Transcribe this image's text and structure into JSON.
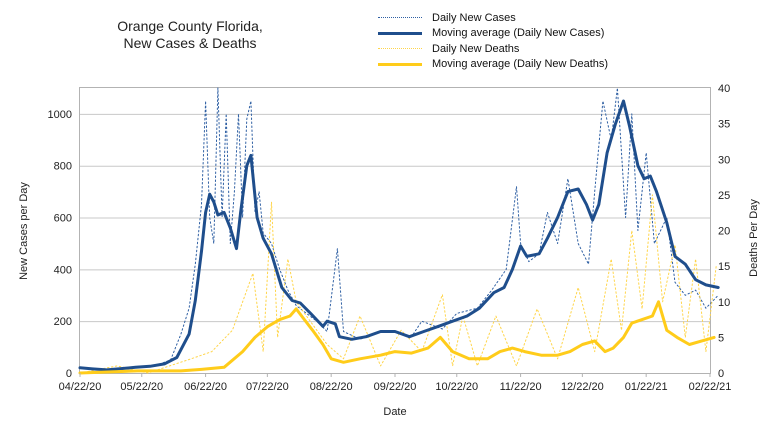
{
  "chart_data": {
    "type": "line",
    "title_line1": "Orange County Florida,",
    "title_line2": "New Cases & Deaths",
    "xlabel": "Date",
    "ylabel_left": "New Cases per Day",
    "ylabel_right": "Deaths Per Day",
    "x_ticks": [
      "04/22/20",
      "05/22/20",
      "06/22/20",
      "07/22/20",
      "08/22/20",
      "09/22/20",
      "10/22/20",
      "11/22/20",
      "12/22/20",
      "01/22/21",
      "02/22/21"
    ],
    "y_left_ticks": [
      0,
      200,
      400,
      600,
      800,
      1000
    ],
    "y_right_ticks": [
      0,
      5,
      10,
      15,
      20,
      25,
      30,
      35,
      40
    ],
    "ylim_left": [
      0,
      1100
    ],
    "ylim_right": [
      0,
      40
    ],
    "grid": true,
    "legend_position": "top",
    "series": [
      {
        "name": "Daily New Cases",
        "axis": "left",
        "style": "dotted",
        "color": "#2e5fa3",
        "points": [
          [
            "04/22/20",
            20
          ],
          [
            "05/01/20",
            14
          ],
          [
            "05/08/20",
            10
          ],
          [
            "05/15/20",
            20
          ],
          [
            "05/22/20",
            26
          ],
          [
            "05/29/20",
            30
          ],
          [
            "06/05/20",
            50
          ],
          [
            "06/10/20",
            150
          ],
          [
            "06/14/20",
            250
          ],
          [
            "06/17/20",
            420
          ],
          [
            "06/20/20",
            650
          ],
          [
            "06/22/20",
            1050
          ],
          [
            "06/24/20",
            600
          ],
          [
            "06/26/20",
            500
          ],
          [
            "06/28/20",
            1100
          ],
          [
            "06/30/20",
            600
          ],
          [
            "07/02/20",
            1000
          ],
          [
            "07/04/20",
            500
          ],
          [
            "07/06/20",
            700
          ],
          [
            "07/08/20",
            1000
          ],
          [
            "07/10/20",
            600
          ],
          [
            "07/12/20",
            980
          ],
          [
            "07/14/20",
            1050
          ],
          [
            "07/16/20",
            620
          ],
          [
            "07/18/20",
            700
          ],
          [
            "07/20/20",
            540
          ],
          [
            "07/24/20",
            500
          ],
          [
            "07/28/20",
            400
          ],
          [
            "08/01/20",
            320
          ],
          [
            "08/05/20",
            260
          ],
          [
            "08/10/20",
            230
          ],
          [
            "08/15/20",
            200
          ],
          [
            "08/20/20",
            160
          ],
          [
            "08/25/20",
            480
          ],
          [
            "08/28/20",
            160
          ],
          [
            "09/05/20",
            130
          ],
          [
            "09/15/20",
            160
          ],
          [
            "09/22/20",
            160
          ],
          [
            "09/30/20",
            140
          ],
          [
            "10/05/20",
            200
          ],
          [
            "10/15/20",
            170
          ],
          [
            "10/22/20",
            230
          ],
          [
            "11/01/20",
            250
          ],
          [
            "11/08/20",
            320
          ],
          [
            "11/15/20",
            400
          ],
          [
            "11/20/20",
            720
          ],
          [
            "11/22/20",
            500
          ],
          [
            "11/26/20",
            430
          ],
          [
            "12/01/20",
            460
          ],
          [
            "12/05/20",
            620
          ],
          [
            "12/10/20",
            500
          ],
          [
            "12/15/20",
            750
          ],
          [
            "12/20/20",
            500
          ],
          [
            "12/25/20",
            420
          ],
          [
            "12/28/20",
            700
          ],
          [
            "01/01/21",
            1050
          ],
          [
            "01/05/21",
            900
          ],
          [
            "01/08/21",
            1100
          ],
          [
            "01/12/21",
            600
          ],
          [
            "01/15/21",
            1000
          ],
          [
            "01/18/21",
            550
          ],
          [
            "01/22/21",
            850
          ],
          [
            "01/26/21",
            500
          ],
          [
            "02/01/21",
            600
          ],
          [
            "02/05/21",
            350
          ],
          [
            "02/10/21",
            300
          ],
          [
            "02/15/21",
            320
          ],
          [
            "02/20/21",
            250
          ],
          [
            "02/26/21",
            300
          ]
        ]
      },
      {
        "name": "Moving average (Daily New Cases)",
        "axis": "left",
        "style": "solid",
        "color": "#1f4e8c",
        "points": [
          [
            "04/22/20",
            20
          ],
          [
            "04/28/20",
            16
          ],
          [
            "05/05/20",
            12
          ],
          [
            "05/12/20",
            17
          ],
          [
            "05/19/20",
            22
          ],
          [
            "05/26/20",
            26
          ],
          [
            "06/02/20",
            35
          ],
          [
            "06/08/20",
            60
          ],
          [
            "06/14/20",
            150
          ],
          [
            "06/17/20",
            280
          ],
          [
            "06/20/20",
            470
          ],
          [
            "06/22/20",
            620
          ],
          [
            "06/24/20",
            690
          ],
          [
            "06/26/20",
            660
          ],
          [
            "06/28/20",
            610
          ],
          [
            "07/01/20",
            620
          ],
          [
            "07/04/20",
            560
          ],
          [
            "07/07/20",
            480
          ],
          [
            "07/09/20",
            620
          ],
          [
            "07/12/20",
            800
          ],
          [
            "07/14/20",
            840
          ],
          [
            "07/17/20",
            600
          ],
          [
            "07/20/20",
            520
          ],
          [
            "07/24/20",
            460
          ],
          [
            "07/29/20",
            330
          ],
          [
            "08/03/20",
            280
          ],
          [
            "08/07/20",
            270
          ],
          [
            "08/12/20",
            230
          ],
          [
            "08/18/20",
            180
          ],
          [
            "08/20/20",
            200
          ],
          [
            "08/24/20",
            190
          ],
          [
            "08/26/20",
            140
          ],
          [
            "09/01/20",
            130
          ],
          [
            "09/08/20",
            140
          ],
          [
            "09/15/20",
            160
          ],
          [
            "09/22/20",
            160
          ],
          [
            "09/29/20",
            140
          ],
          [
            "10/06/20",
            160
          ],
          [
            "10/13/20",
            180
          ],
          [
            "10/20/20",
            200
          ],
          [
            "10/27/20",
            220
          ],
          [
            "11/02/20",
            250
          ],
          [
            "11/09/20",
            310
          ],
          [
            "11/14/20",
            330
          ],
          [
            "11/18/20",
            400
          ],
          [
            "11/22/20",
            490
          ],
          [
            "11/25/20",
            450
          ],
          [
            "12/01/20",
            460
          ],
          [
            "12/05/20",
            520
          ],
          [
            "12/10/20",
            600
          ],
          [
            "12/15/20",
            700
          ],
          [
            "12/20/20",
            710
          ],
          [
            "12/24/20",
            650
          ],
          [
            "12/27/20",
            590
          ],
          [
            "12/30/20",
            650
          ],
          [
            "01/03/21",
            850
          ],
          [
            "01/07/21",
            960
          ],
          [
            "01/11/21",
            1050
          ],
          [
            "01/14/21",
            950
          ],
          [
            "01/18/21",
            800
          ],
          [
            "01/21/21",
            750
          ],
          [
            "01/24/21",
            760
          ],
          [
            "01/27/21",
            700
          ],
          [
            "02/01/21",
            580
          ],
          [
            "02/05/21",
            450
          ],
          [
            "02/10/21",
            420
          ],
          [
            "02/15/21",
            360
          ],
          [
            "02/20/21",
            340
          ],
          [
            "02/26/21",
            330
          ]
        ]
      },
      {
        "name": "Daily New Deaths",
        "axis": "right",
        "style": "dotted",
        "color": "#ffd54a",
        "points": [
          [
            "04/22/20",
            0
          ],
          [
            "05/10/20",
            1
          ],
          [
            "05/25/20",
            0
          ],
          [
            "06/15/20",
            2
          ],
          [
            "06/25/20",
            3
          ],
          [
            "07/05/20",
            6
          ],
          [
            "07/15/20",
            14
          ],
          [
            "07/20/20",
            3
          ],
          [
            "07/24/20",
            24
          ],
          [
            "07/27/20",
            5
          ],
          [
            "08/01/20",
            16
          ],
          [
            "08/05/20",
            10
          ],
          [
            "08/10/20",
            8
          ],
          [
            "08/20/20",
            4
          ],
          [
            "08/28/20",
            2
          ],
          [
            "09/05/20",
            8
          ],
          [
            "09/15/20",
            1
          ],
          [
            "09/25/20",
            6
          ],
          [
            "10/05/20",
            3
          ],
          [
            "10/15/20",
            11
          ],
          [
            "10/20/20",
            1
          ],
          [
            "10/25/20",
            8
          ],
          [
            "11/01/20",
            1
          ],
          [
            "11/10/20",
            8
          ],
          [
            "11/20/20",
            1
          ],
          [
            "11/30/20",
            9
          ],
          [
            "12/10/20",
            2
          ],
          [
            "12/20/20",
            12
          ],
          [
            "12/28/20",
            3
          ],
          [
            "01/05/21",
            16
          ],
          [
            "01/10/21",
            6
          ],
          [
            "01/15/21",
            20
          ],
          [
            "01/20/21",
            9
          ],
          [
            "01/25/21",
            25
          ],
          [
            "01/30/21",
            10
          ],
          [
            "02/05/21",
            18
          ],
          [
            "02/10/21",
            5
          ],
          [
            "02/15/21",
            16
          ],
          [
            "02/20/21",
            3
          ],
          [
            "02/25/21",
            15
          ]
        ]
      },
      {
        "name": "Moving average (Daily New Deaths)",
        "axis": "right",
        "style": "solid",
        "color": "#ffcc1a",
        "points": [
          [
            "04/22/20",
            0
          ],
          [
            "05/20/20",
            0.3
          ],
          [
            "06/10/20",
            0.3
          ],
          [
            "06/20/20",
            0.5
          ],
          [
            "07/01/20",
            0.8
          ],
          [
            "07/10/20",
            3
          ],
          [
            "07/16/20",
            5
          ],
          [
            "07/22/20",
            6.5
          ],
          [
            "07/28/20",
            7.5
          ],
          [
            "08/02/20",
            8
          ],
          [
            "08/05/20",
            9
          ],
          [
            "08/09/20",
            7.5
          ],
          [
            "08/13/20",
            6
          ],
          [
            "08/18/20",
            4
          ],
          [
            "08/22/20",
            2
          ],
          [
            "08/28/20",
            1.5
          ],
          [
            "09/05/20",
            2
          ],
          [
            "09/15/20",
            2.5
          ],
          [
            "09/22/20",
            3
          ],
          [
            "09/30/20",
            2.8
          ],
          [
            "10/08/20",
            3.5
          ],
          [
            "10/14/20",
            5
          ],
          [
            "10/20/20",
            3
          ],
          [
            "10/28/20",
            2
          ],
          [
            "11/06/20",
            2
          ],
          [
            "11/12/20",
            3
          ],
          [
            "11/18/20",
            3.5
          ],
          [
            "11/24/20",
            3
          ],
          [
            "12/02/20",
            2.5
          ],
          [
            "12/10/20",
            2.5
          ],
          [
            "12/16/20",
            3
          ],
          [
            "12/22/20",
            4
          ],
          [
            "12/28/20",
            4.5
          ],
          [
            "01/02/21",
            3
          ],
          [
            "01/06/21",
            3.5
          ],
          [
            "01/11/21",
            5
          ],
          [
            "01/15/21",
            7
          ],
          [
            "01/20/21",
            7.5
          ],
          [
            "01/25/21",
            8
          ],
          [
            "01/28/21",
            10
          ],
          [
            "02/01/21",
            6
          ],
          [
            "02/06/21",
            5
          ],
          [
            "02/12/21",
            4
          ],
          [
            "02/18/21",
            4.5
          ],
          [
            "02/24/21",
            5
          ]
        ]
      }
    ]
  }
}
